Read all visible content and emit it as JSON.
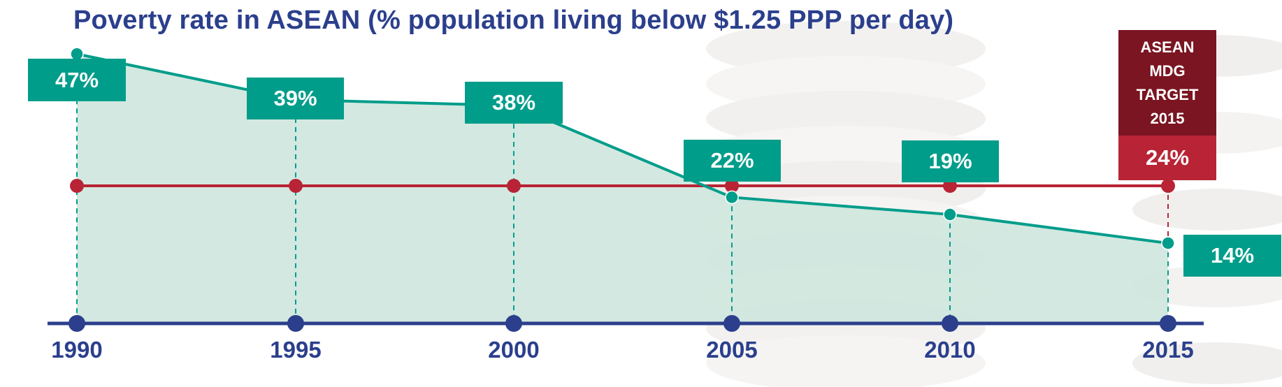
{
  "chart_data": {
    "type": "area",
    "title": "Poverty rate in ASEAN (% population living below $1.25 PPP per day)",
    "x": [
      "1990",
      "1995",
      "2000",
      "2005",
      "2010",
      "2015"
    ],
    "series": [
      {
        "values": [
          47,
          39,
          38,
          22,
          19,
          14
        ],
        "labels": [
          "47%",
          "39%",
          "38%",
          "22%",
          "19%",
          "14%"
        ]
      }
    ],
    "target": {
      "label": "ASEAN\nMDG\nTARGET\n2015",
      "value": 24,
      "value_label": "24%"
    },
    "ylim": [
      0,
      53
    ],
    "colors": {
      "area_fill": "#cfe6dd",
      "line": "#009d8a",
      "target": "#b82435",
      "axis": "#2b3f8c"
    }
  }
}
